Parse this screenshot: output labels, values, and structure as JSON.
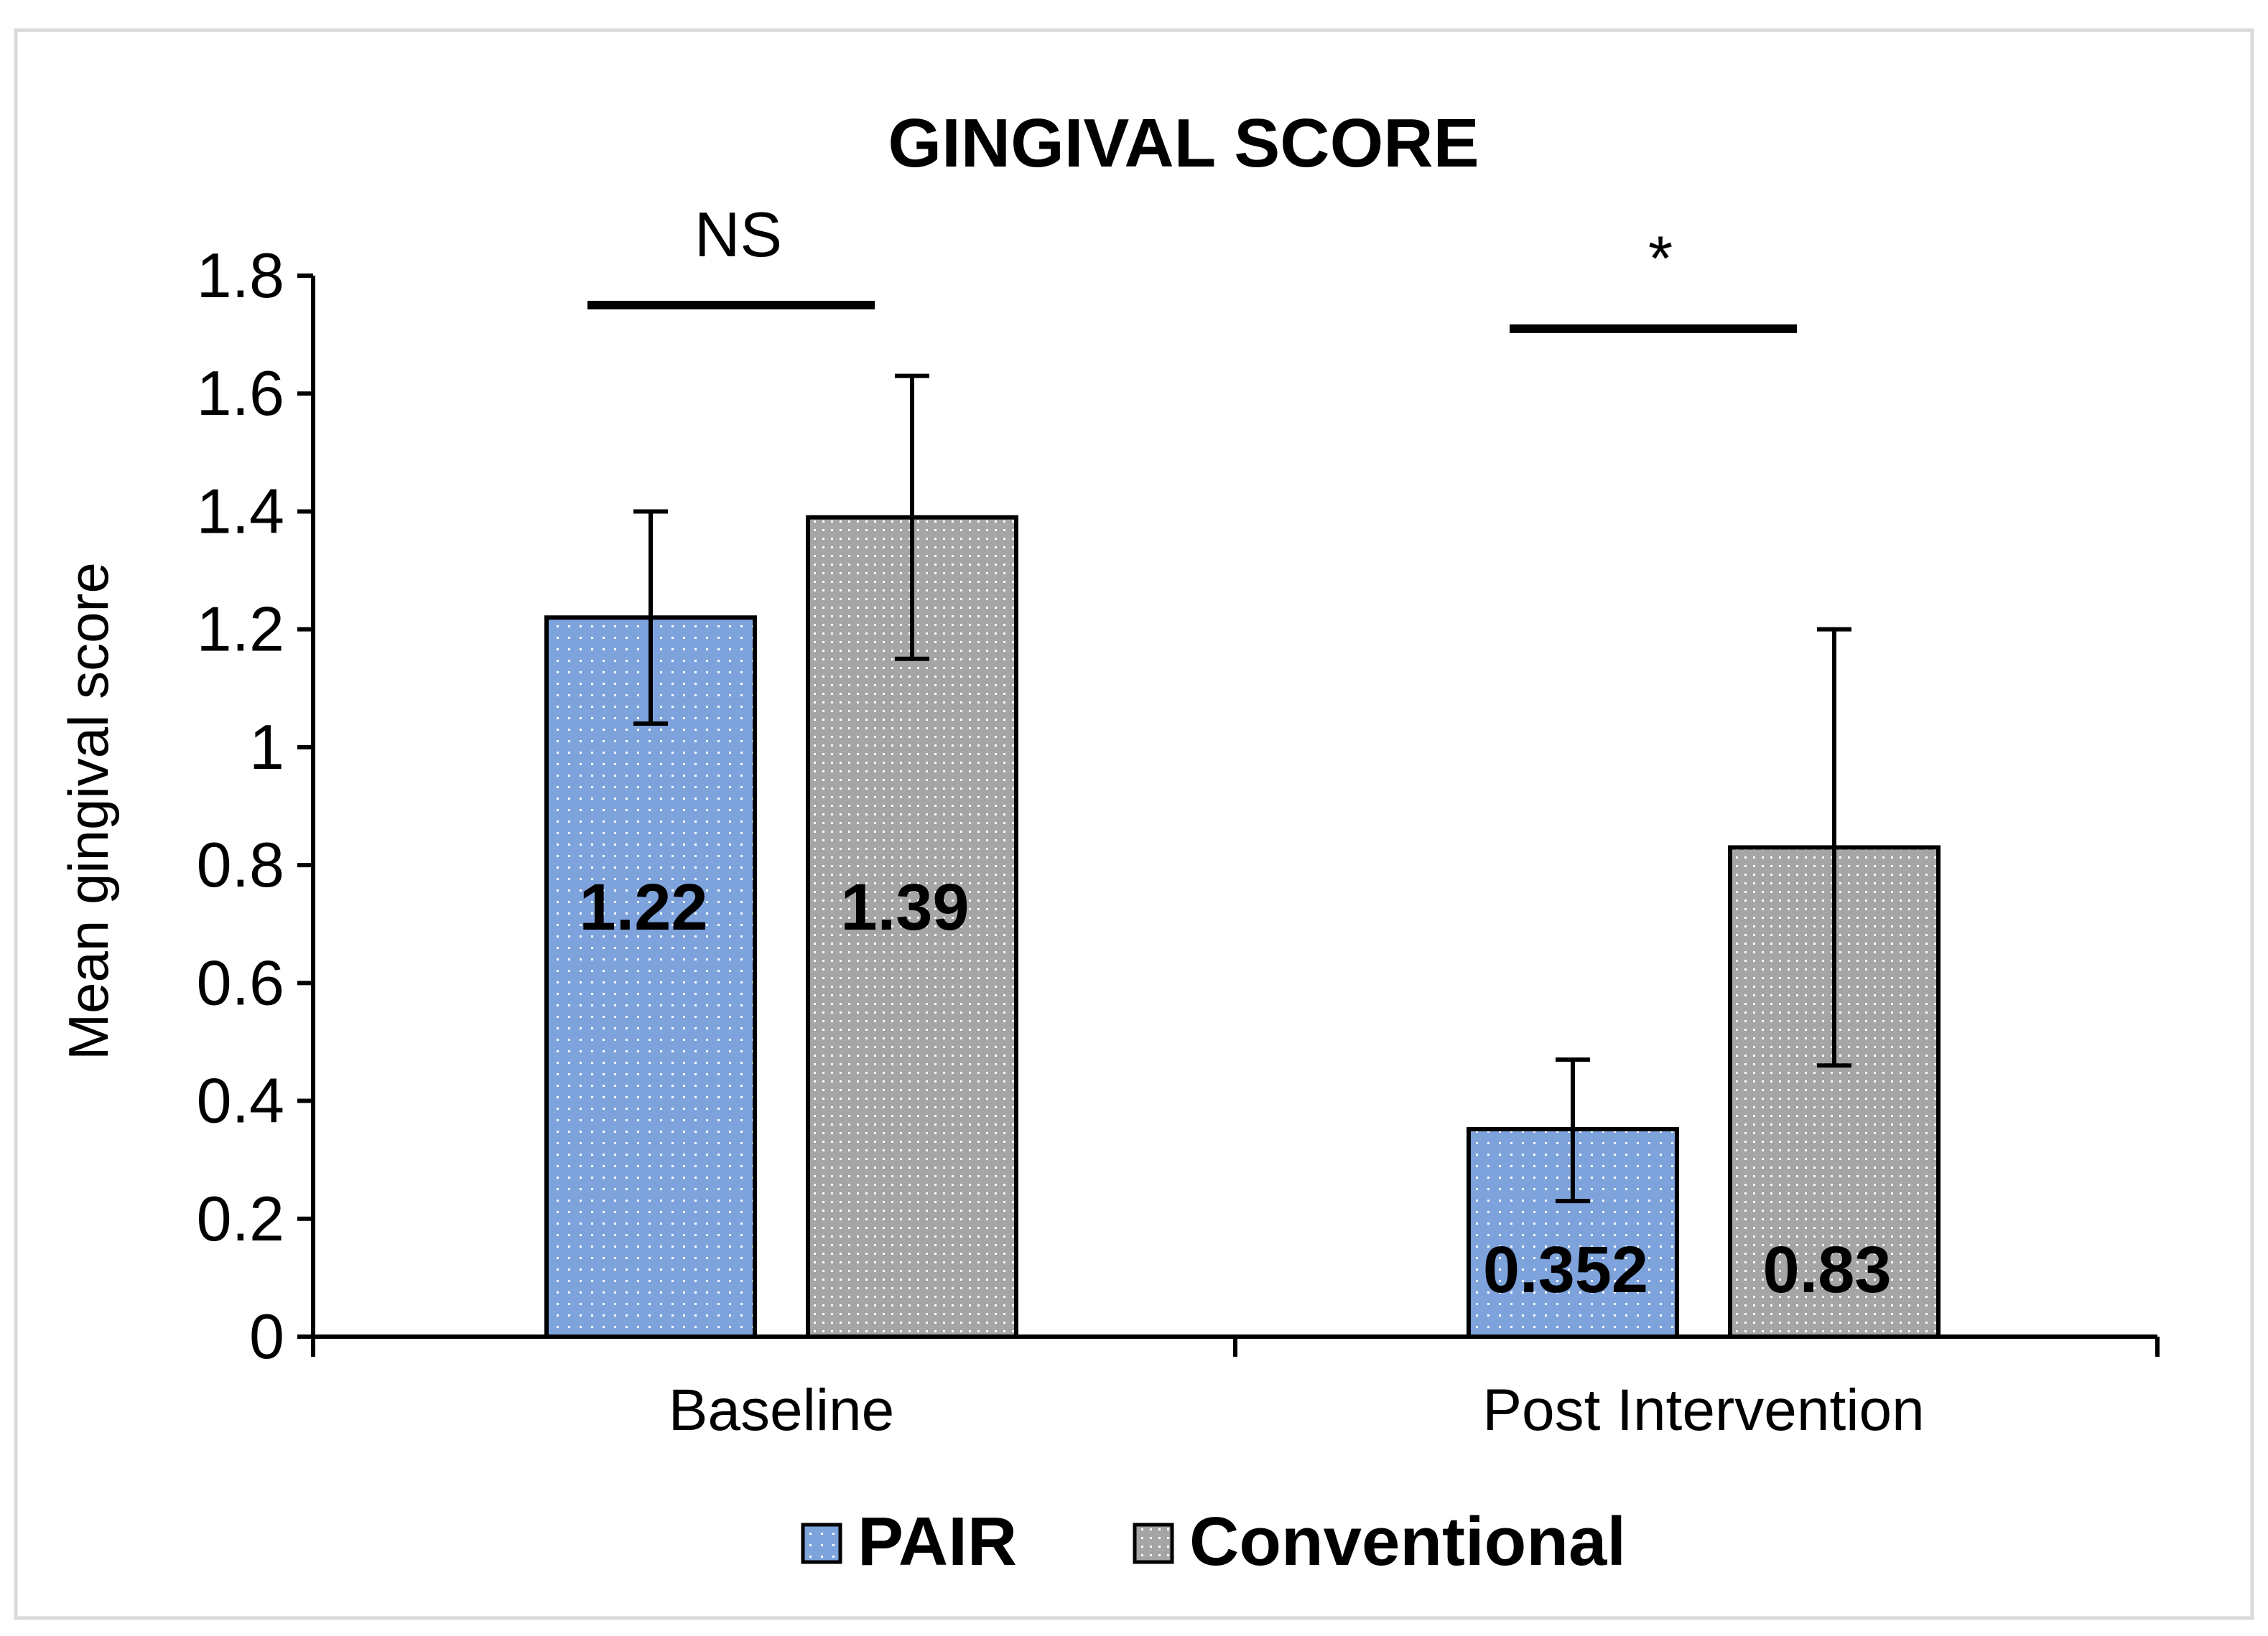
{
  "chart_data": {
    "type": "bar",
    "title": "GINGIVAL SCORE",
    "xlabel": "",
    "ylabel": "Mean gingival score",
    "ylim": [
      0,
      1.8
    ],
    "ytick_step": 0.2,
    "ytick_labels": [
      "0",
      "0.2",
      "0.4",
      "0.6",
      "0.8",
      "1",
      "1.2",
      "1.4",
      "1.6",
      "1.8"
    ],
    "categories": [
      "Baseline",
      "Post Intervention"
    ],
    "series": [
      {
        "name": "PAIR",
        "color": "#7EA3DC",
        "pattern": "dots-white",
        "values": [
          1.22,
          0.352
        ],
        "value_labels": [
          "1.22",
          "0.352"
        ],
        "error_low": [
          1.04,
          0.23
        ],
        "error_high": [
          1.4,
          0.47
        ]
      },
      {
        "name": "Conventional",
        "color": "#A5A5A5",
        "pattern": "dots-white",
        "values": [
          1.39,
          0.83
        ],
        "value_labels": [
          "1.39",
          "0.83"
        ],
        "error_low": [
          1.15,
          0.46
        ],
        "error_high": [
          1.63,
          1.2
        ]
      }
    ],
    "significance": [
      {
        "category": "Baseline",
        "label": "NS",
        "line_value": 1.75
      },
      {
        "category": "Post Intervention",
        "label": "*",
        "line_value": 1.71
      }
    ],
    "legend_position": "bottom",
    "grid": false
  }
}
